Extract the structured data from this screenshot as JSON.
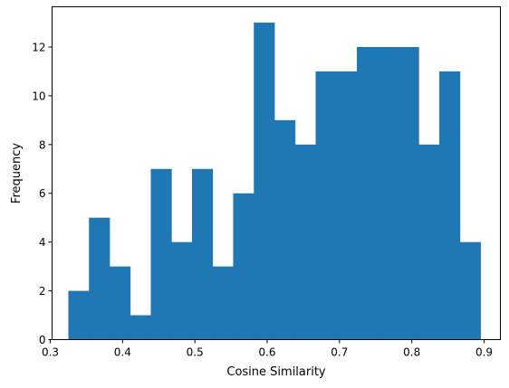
{
  "colors": {
    "bar": "#1f77b4",
    "axis": "#000000",
    "background": "#ffffff"
  },
  "chart_data": {
    "type": "bar",
    "title": "",
    "xlabel": "Cosine Similarity",
    "ylabel": "Frequency",
    "xlim": [
      0.3025,
      0.9225
    ],
    "ylim": [
      0,
      13.65
    ],
    "grid": false,
    "legend": "none",
    "x_ticks": [
      "0.3",
      "0.4",
      "0.5",
      "0.6",
      "0.7",
      "0.8",
      "0.9"
    ],
    "y_ticks": [
      "0",
      "2",
      "4",
      "6",
      "8",
      "10",
      "12"
    ],
    "bin_edges": [
      0.325,
      0.3535,
      0.382,
      0.4105,
      0.439,
      0.4675,
      0.496,
      0.5245,
      0.553,
      0.5815,
      0.61,
      0.6385,
      0.667,
      0.6955,
      0.724,
      0.7525,
      0.781,
      0.8095,
      0.838,
      0.8665,
      0.895
    ],
    "values": [
      2,
      5,
      3,
      1,
      7,
      4,
      7,
      3,
      6,
      13,
      9,
      8,
      11,
      11,
      12,
      12,
      12,
      8,
      11,
      4
    ]
  }
}
